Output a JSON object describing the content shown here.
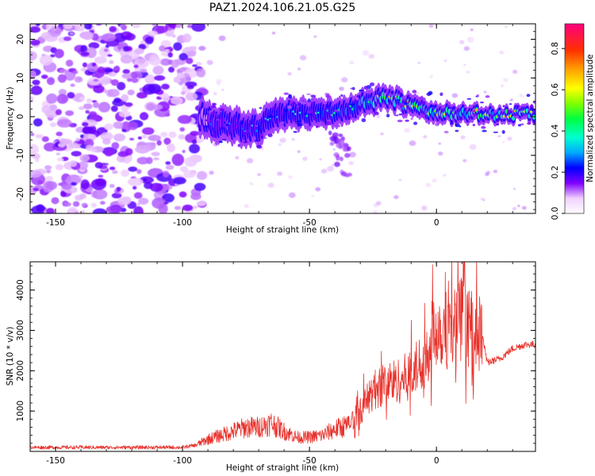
{
  "figure": {
    "title": "PAZ1.2024.106.21.05.G25"
  },
  "chart_data": [
    {
      "type": "heatmap",
      "xlabel": "Height of straight line (km)",
      "ylabel": "Frequency (Hz)",
      "xlim": [
        -160,
        39
      ],
      "ylim": [
        -25,
        24
      ],
      "xticks": [
        -150,
        -100,
        -50,
        0
      ],
      "yticks": [
        -20,
        -10,
        0,
        10,
        20
      ],
      "xtick_labels": [
        "-150",
        "-100",
        "-50",
        "0"
      ],
      "ytick_labels": [
        "-20",
        "-10",
        "0",
        "10",
        "20"
      ],
      "colormap": "gist_ncar",
      "colorbar": {
        "label": "Normalized spectral amplitude",
        "range": [
          0,
          0.92
        ],
        "ticks": [
          0.0,
          0.2,
          0.4,
          0.6,
          0.8
        ],
        "tick_labels": [
          "0.0",
          "0.2",
          "0.4",
          "0.6",
          "0.8"
        ]
      },
      "ridge": {
        "description_points_x": [
          -92,
          -85,
          -75,
          -70,
          -65,
          -60,
          -50,
          -40,
          -35,
          -30,
          -25,
          -20,
          -15,
          -10,
          -5,
          0,
          10,
          20,
          30,
          39
        ],
        "description_points_y": [
          0,
          -2,
          -3,
          -3,
          0,
          1,
          1,
          1,
          2,
          3,
          4,
          5,
          4,
          3,
          2,
          1,
          1,
          0.5,
          0.5,
          0.5
        ],
        "peak_amplitude": 0.9
      }
    },
    {
      "type": "line",
      "xlabel": "Height of straight line (km)",
      "ylabel": "SNR (10 * v/v)",
      "xlim": [
        -160,
        39
      ],
      "ylim": [
        0,
        4700
      ],
      "xticks": [
        -150,
        -100,
        -50,
        0
      ],
      "yticks": [
        1000,
        2000,
        3000,
        4000
      ],
      "xtick_labels": [
        "-150",
        "-100",
        "-50",
        "0"
      ],
      "ytick_labels": [
        "1000",
        "2000",
        "3000",
        "4000"
      ],
      "color": "#e8302a",
      "envelope_x": [
        -160,
        -100,
        -95,
        -90,
        -85,
        -80,
        -75,
        -70,
        -65,
        -60,
        -55,
        -50,
        -45,
        -40,
        -35,
        -30,
        -25,
        -20,
        -15,
        -10,
        -5,
        0,
        5,
        10,
        15,
        18,
        20,
        25,
        30,
        35,
        39
      ],
      "envelope_y": [
        100,
        100,
        150,
        300,
        400,
        500,
        600,
        600,
        700,
        500,
        350,
        350,
        400,
        550,
        650,
        1000,
        1500,
        1700,
        1750,
        1900,
        2300,
        3100,
        3000,
        3300,
        2900,
        2900,
        2200,
        2300,
        2550,
        2650,
        2650
      ]
    }
  ]
}
